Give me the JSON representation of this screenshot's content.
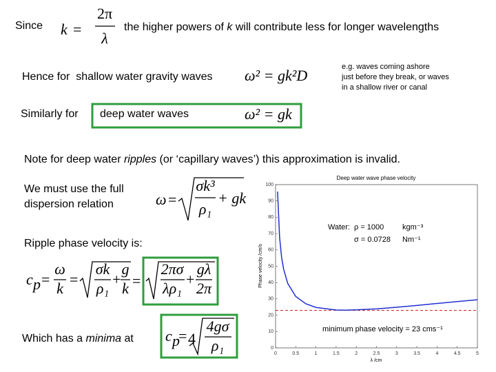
{
  "since": {
    "label": "Since",
    "eq": {
      "lhs": "k",
      "op": "=",
      "num": "2π",
      "den": "λ"
    }
  },
  "statement": {
    "before": "the higher powers of ",
    "var": "k",
    "after": " will contribute less for longer wavelengths"
  },
  "shallow": {
    "label": "Hence for  shallow water gravity waves",
    "eq": "ω² = gk²D",
    "note": [
      "e.g. waves coming ashore",
      "just before they break, or waves",
      "in a shallow river or canal"
    ]
  },
  "deep": {
    "label": "Similarly for",
    "boxed": "deep water waves",
    "eq": "ω² = gk"
  },
  "note": {
    "before": "Note for deep water ",
    "emph": "ripples",
    "after": " (or ‘capillary waves’) this approximation is invalid."
  },
  "dispersion": {
    "label": [
      "We must use the full",
      "dispersion relation"
    ],
    "eq": {
      "lhs": "ω",
      "op": "=",
      "num": "σk³",
      "den": "ρ₁",
      "tail": "+ gk"
    }
  },
  "ripple": {
    "label": "Ripple phase velocity is:",
    "eq": {
      "c": "c",
      "sub": "p",
      "op1": "=",
      "num1": "ω",
      "den1": "k",
      "op2": "=",
      "num2": "σk",
      "den2": "ρ₁",
      "plus": "+",
      "num3": "g",
      "den3": "k",
      "op3": "=",
      "num4": "2πσ",
      "den4": "λρ₁",
      "plus2": "+",
      "num5": "gλ",
      "den5": "2π"
    }
  },
  "minima": {
    "before": "Which has a ",
    "emph": "minima",
    "after": " at",
    "eq": {
      "c": "c",
      "sub": "p",
      "op": "=",
      "index": "4",
      "num": "4gσ",
      "den": "ρ₁"
    }
  },
  "chart_data": {
    "type": "line",
    "title": "Deep water wave phase velocity",
    "xlabel": "λ /cm",
    "ylabel": "Phase velocity /cm/s",
    "x": [
      0.05,
      0.1,
      0.15,
      0.2,
      0.3,
      0.5,
      0.75,
      1.0,
      1.5,
      1.73,
      2.0,
      2.5,
      3.0,
      3.5,
      4.0,
      4.5,
      5.0
    ],
    "series": [
      {
        "name": "phase velocity",
        "color": "#1f2fd0",
        "values": [
          95.7,
          67.7,
          55.4,
          48.2,
          39.6,
          31.5,
          27.0,
          24.8,
          23.2,
          23.1,
          23.3,
          23.9,
          24.9,
          26.0,
          27.2,
          28.4,
          29.5
        ]
      }
    ],
    "xlim": [
      0,
      5
    ],
    "ylim": [
      0,
      100
    ],
    "xticks": [
      0,
      0.5,
      1,
      1.5,
      2,
      2.5,
      3,
      3.5,
      4,
      4.5,
      5
    ],
    "yticks": [
      0,
      10,
      20,
      30,
      40,
      50,
      60,
      70,
      80,
      90,
      100
    ],
    "reference_line": {
      "value": 23,
      "color": "#cc2222"
    },
    "annotations": {
      "water": {
        "label": "Water:",
        "rho": "ρ = 1000",
        "rho_unit": "kgm⁻³",
        "sigma": "σ = 0.0728",
        "sigma_unit": "Nm⁻¹"
      },
      "min_label": "minimum phase velocity = 23 cms⁻¹"
    }
  }
}
